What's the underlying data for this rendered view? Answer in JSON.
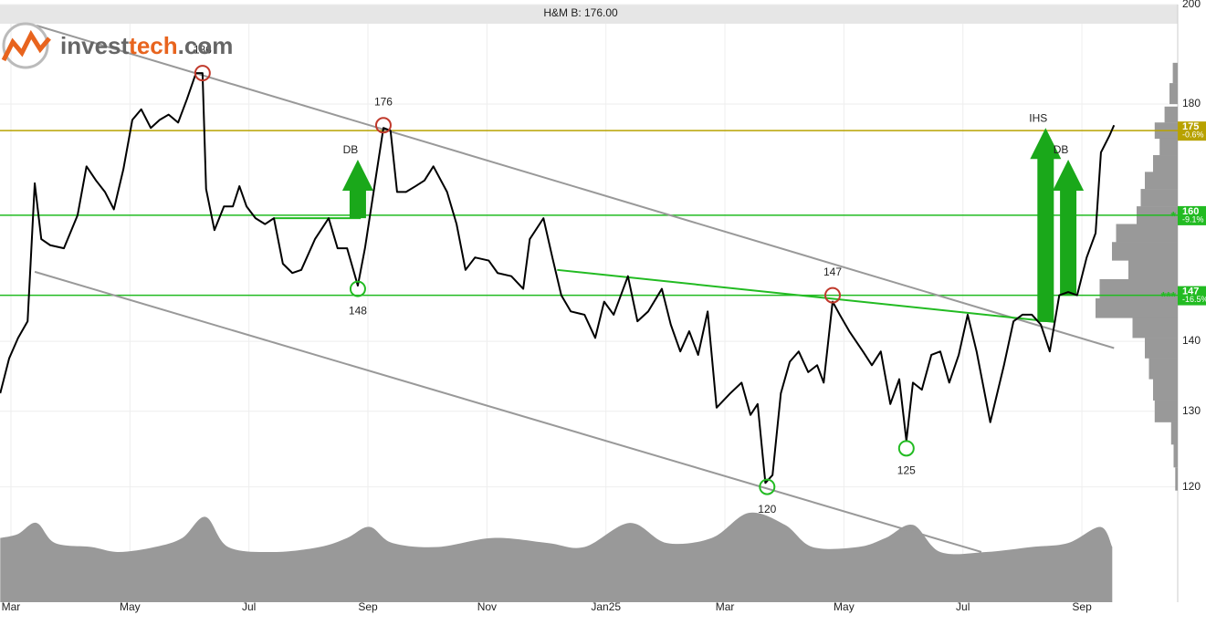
{
  "chart_data": {
    "type": "line",
    "title": "H&M B: 176.00",
    "logo": [
      "invest",
      "tech",
      ".com"
    ],
    "color": "#000000",
    "log_scale": true,
    "grid": true,
    "xlim": [
      -0.184,
      19.61
    ],
    "ylim": [
      106.2,
      200
    ],
    "yticks": [
      120,
      130,
      140,
      180,
      200
    ],
    "xticks": [
      {
        "value": 0,
        "label": "Mar"
      },
      {
        "value": 2,
        "label": "May"
      },
      {
        "value": 4,
        "label": "Jul"
      },
      {
        "value": 6,
        "label": "Sep"
      },
      {
        "value": 8,
        "label": "Nov"
      },
      {
        "value": 10,
        "label": "Jan25"
      },
      {
        "value": 12,
        "label": "Mar"
      },
      {
        "value": 14,
        "label": "May"
      },
      {
        "value": 16,
        "label": "Jul"
      },
      {
        "value": 18,
        "label": "Sep"
      }
    ],
    "x": [
      -0.18,
      -0.03,
      0.12,
      0.28,
      0.4,
      0.51,
      0.66,
      0.89,
      1.12,
      1.27,
      1.43,
      1.58,
      1.73,
      1.89,
      2.04,
      2.19,
      2.35,
      2.5,
      2.65,
      2.81,
      2.96,
      3.11,
      3.22,
      3.28,
      3.42,
      3.58,
      3.73,
      3.84,
      3.96,
      4.11,
      4.27,
      4.42,
      4.57,
      4.73,
      4.88,
      5.11,
      5.34,
      5.49,
      5.65,
      5.83,
      5.95,
      6.11,
      6.26,
      6.38,
      6.49,
      6.64,
      6.8,
      6.95,
      7.1,
      7.33,
      7.49,
      7.64,
      7.8,
      8.03,
      8.18,
      8.41,
      8.61,
      8.72,
      8.95,
      9.1,
      9.25,
      9.41,
      9.64,
      9.82,
      9.97,
      10.13,
      10.37,
      10.53,
      10.71,
      10.94,
      11.09,
      11.25,
      11.4,
      11.55,
      11.71,
      11.86,
      12.09,
      12.28,
      12.43,
      12.55,
      12.68,
      12.8,
      12.94,
      13.09,
      13.24,
      13.4,
      13.55,
      13.66,
      13.81,
      13.93,
      14.09,
      14.32,
      14.47,
      14.62,
      14.78,
      14.93,
      15.05,
      15.16,
      15.31,
      15.47,
      15.62,
      15.77,
      15.93,
      16.08,
      16.23,
      16.46,
      16.69,
      16.85,
      17.0,
      17.16,
      17.31,
      17.46,
      17.62,
      17.77,
      17.92,
      18.08,
      18.23,
      18.32,
      18.46,
      18.54
    ],
    "values": [
      132.5,
      137.5,
      140.5,
      143,
      165.5,
      156,
      155,
      154.5,
      160,
      168.5,
      166,
      164,
      161,
      168,
      177,
      179,
      175.5,
      177,
      178,
      176.5,
      181,
      186,
      186,
      164.5,
      157.5,
      161.5,
      161.5,
      165,
      161.5,
      159.5,
      158.5,
      159.5,
      152,
      150.5,
      151,
      156,
      159.5,
      154.5,
      154.5,
      148.5,
      154.5,
      165,
      175.5,
      175,
      164,
      164,
      165,
      166,
      168.5,
      164,
      158.5,
      151,
      153,
      152.5,
      150.5,
      150,
      148,
      156,
      159.5,
      153,
      147,
      144.5,
      144,
      140.5,
      146,
      144,
      150,
      143,
      144.5,
      148,
      142.5,
      138.5,
      141.5,
      138,
      144.5,
      130.5,
      132.5,
      134,
      129.5,
      131,
      120.5,
      121.5,
      132.5,
      137,
      138.5,
      135.5,
      136.5,
      134,
      146,
      144,
      141.5,
      138.5,
      136.5,
      138.5,
      131,
      134.5,
      126,
      134,
      133,
      138,
      138.5,
      134,
      138,
      144,
      138.5,
      128.5,
      136.5,
      143,
      144,
      144,
      142.5,
      138.5,
      147,
      147.5,
      147,
      153,
      157,
      171,
      174,
      176
    ],
    "levels": [
      {
        "value": 175,
        "change": "-0.6%",
        "color": "#b8a200"
      },
      {
        "value": 160,
        "change": "-9.1%",
        "stars": "*",
        "color": "#22bb22"
      },
      {
        "value": 147,
        "change": "-16.5%",
        "stars": "***",
        "color": "#22bb22"
      }
    ],
    "trendlines": [
      {
        "x": [
          0.43,
          18.54
        ],
        "y": [
          195.6,
          139.0
        ],
        "color": "#999999"
      },
      {
        "x": [
          0.4,
          16.31
        ],
        "y": [
          150.7,
          112.0
        ],
        "color": "#999999"
      },
      {
        "x": [
          9.18,
          17.54
        ],
        "y": [
          151,
          142.9
        ],
        "color": "#22bb22"
      },
      {
        "x": [
          4.42,
          5.88
        ],
        "y": [
          159.5,
          159.5
        ],
        "color": "#22bb22"
      }
    ],
    "extremes": [
      {
        "x": 3.22,
        "value": 186,
        "position": "above",
        "color": "#c0392b"
      },
      {
        "x": 6.26,
        "value": 176,
        "position": "above",
        "color": "#c0392b"
      },
      {
        "x": 5.83,
        "value": 148,
        "position": "below",
        "color": "#22bb22"
      },
      {
        "x": 13.81,
        "value": 147,
        "position": "above",
        "color": "#c0392b"
      },
      {
        "x": 12.71,
        "value": 120,
        "position": "below",
        "color": "#22bb22"
      },
      {
        "x": 15.05,
        "value": 125,
        "position": "below",
        "color": "#22bb22"
      }
    ],
    "arrows": [
      {
        "label": "DB",
        "x": 5.83,
        "from": 159.5,
        "to": 169.7,
        "color": "#1aa81a"
      },
      {
        "label": "IHS",
        "x": 17.39,
        "from": 142.9,
        "to": 175.5,
        "color": "#1aa81a"
      },
      {
        "label": "DB",
        "x": 17.77,
        "from": 147,
        "to": 169.7,
        "color": "#1aa81a"
      }
    ],
    "volume": {
      "color": "#999999",
      "ylim": [
        0,
        100
      ],
      "x": [
        -0.18,
        0.12,
        0.43,
        0.74,
        1.35,
        1.81,
        2.42,
        2.88,
        3.27,
        3.65,
        4.42,
        5.19,
        5.65,
        6.03,
        6.41,
        7.18,
        8.1,
        9.02,
        9.64,
        10.4,
        11.02,
        11.78,
        12.4,
        13.01,
        13.47,
        14.24,
        14.7,
        15.16,
        15.62,
        16.39,
        17.16,
        17.77,
        18.31,
        18.51
      ],
      "values": [
        64,
        68,
        79,
        59,
        55,
        50,
        55,
        64,
        85,
        55,
        50,
        55,
        64,
        75,
        59,
        55,
        64,
        59,
        55,
        79,
        59,
        64,
        89,
        77,
        55,
        55,
        64,
        77,
        50,
        50,
        55,
        59,
        75,
        55
      ]
    },
    "price_volume": {
      "color": "#999999",
      "xlim": [
        0,
        100
      ],
      "prices": [
        186,
        182,
        178,
        175,
        172,
        169,
        166,
        163,
        160,
        157,
        154,
        151,
        148,
        145,
        142,
        139,
        136,
        133,
        130,
        127,
        124,
        121
      ],
      "values": [
        6,
        10,
        16,
        28,
        22,
        30,
        40,
        45,
        50,
        75,
        80,
        60,
        95,
        100,
        55,
        40,
        35,
        30,
        28,
        8,
        5,
        3
      ]
    }
  }
}
